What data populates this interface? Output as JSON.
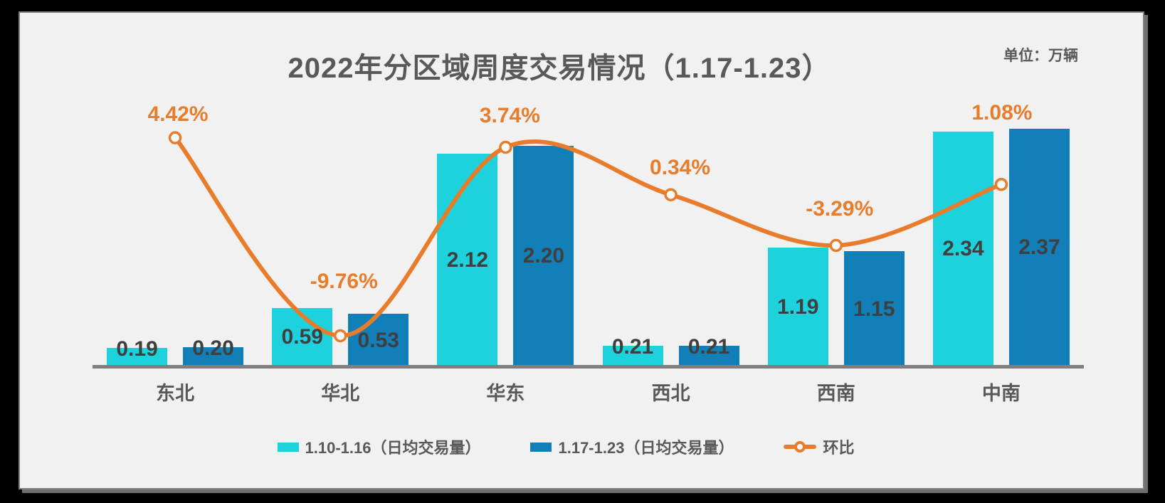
{
  "title": "2022年分区域周度交易情况（1.17-1.23）",
  "unit_label": "单位：万辆",
  "colors": {
    "background_outer": "#000000",
    "panel_background": "#f1f1f2",
    "panel_border": "#7f7f7f",
    "axis_line": "#7f7f7f",
    "series1_cyan": "#1dd2dc",
    "series2_blue": "#127fb8",
    "line_orange": "#e87c2b",
    "value_label": "#3f3f3f",
    "text_gray": "#595959"
  },
  "chart_data": {
    "type": "bar",
    "subtype": "grouped-bars-with-line-overlay",
    "title": "2022年分区域周度交易情况（1.17-1.23）",
    "unit": "万辆",
    "categories": [
      "东北",
      "华北",
      "华东",
      "西北",
      "西南",
      "中南"
    ],
    "series": [
      {
        "name": "1.10-1.16（日均交易量）",
        "type": "bar",
        "color": "#1dd2dc",
        "values": [
          0.19,
          0.59,
          2.12,
          0.21,
          1.19,
          2.34
        ],
        "labels": [
          "0.19",
          "0.59",
          "2.12",
          "0.21",
          "1.19",
          "2.34"
        ]
      },
      {
        "name": "1.17-1.23（日均交易量）",
        "type": "bar",
        "color": "#127fb8",
        "values": [
          0.2,
          0.53,
          2.2,
          0.21,
          1.15,
          2.37
        ],
        "labels": [
          "0.20",
          "0.53",
          "2.20",
          "0.21",
          "1.15",
          "2.37"
        ]
      },
      {
        "name": "环比",
        "type": "line",
        "color": "#e87c2b",
        "marker": "circle-white-fill-orange-ring",
        "smooth": true,
        "values_percent": [
          4.42,
          -9.76,
          3.74,
          0.34,
          -3.29,
          1.08
        ],
        "labels": [
          "4.42%",
          "-9.76%",
          "3.74%",
          "0.34%",
          "-3.29%",
          "1.08%"
        ]
      }
    ],
    "legend_position": "bottom",
    "value_axes_hidden": true,
    "gridlines": false
  }
}
